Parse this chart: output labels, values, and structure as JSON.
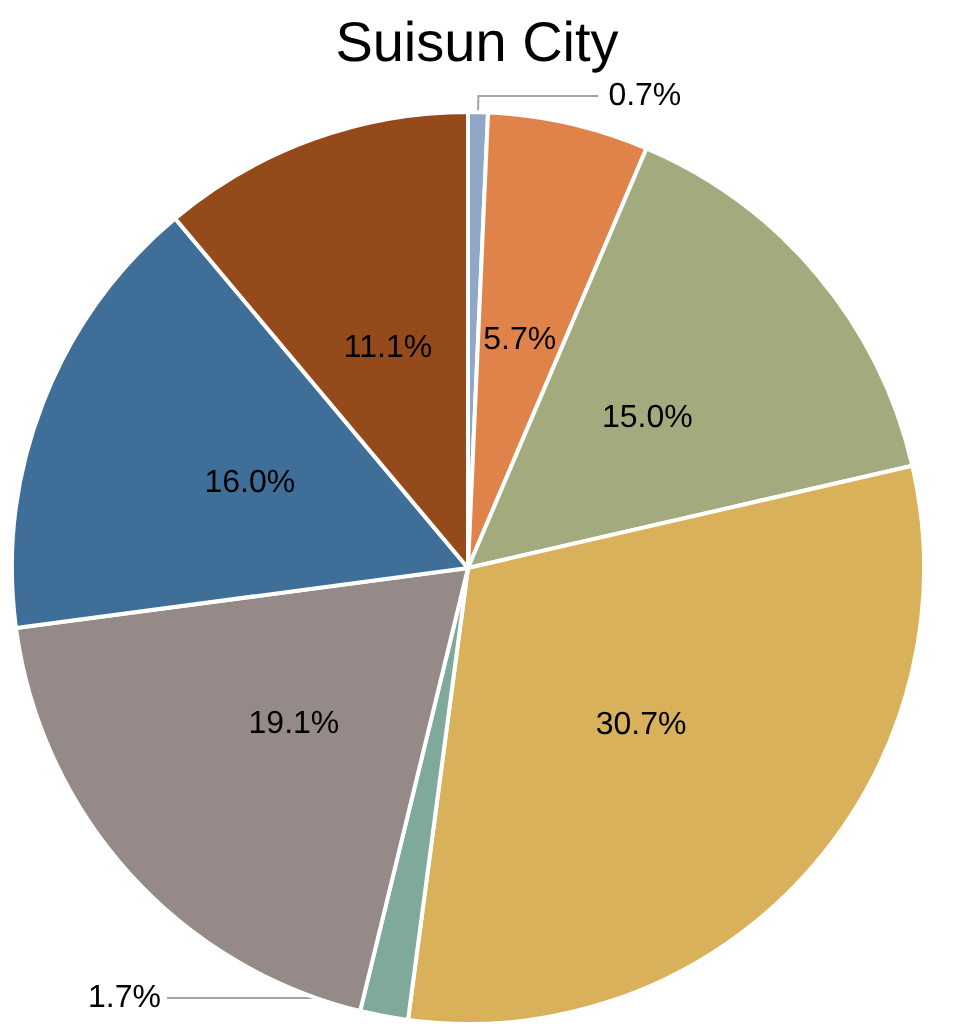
{
  "chart_data": {
    "type": "pie",
    "title": "Suisun City",
    "categories": [
      null,
      null,
      null,
      null,
      null,
      null,
      null,
      null
    ],
    "values": [
      0.7,
      5.7,
      15.0,
      30.7,
      1.7,
      19.1,
      16.0,
      11.1
    ],
    "value_labels": [
      "0.7%",
      "5.7%",
      "15.0%",
      "30.7%",
      "1.7%",
      "19.1%",
      "16.0%",
      "11.1%"
    ],
    "colors": [
      "#8fa8c8",
      "#e0834a",
      "#a3ab7e",
      "#d8b15a",
      "#7fa99a",
      "#958a87",
      "#3f6f99",
      "#954a1c"
    ]
  }
}
